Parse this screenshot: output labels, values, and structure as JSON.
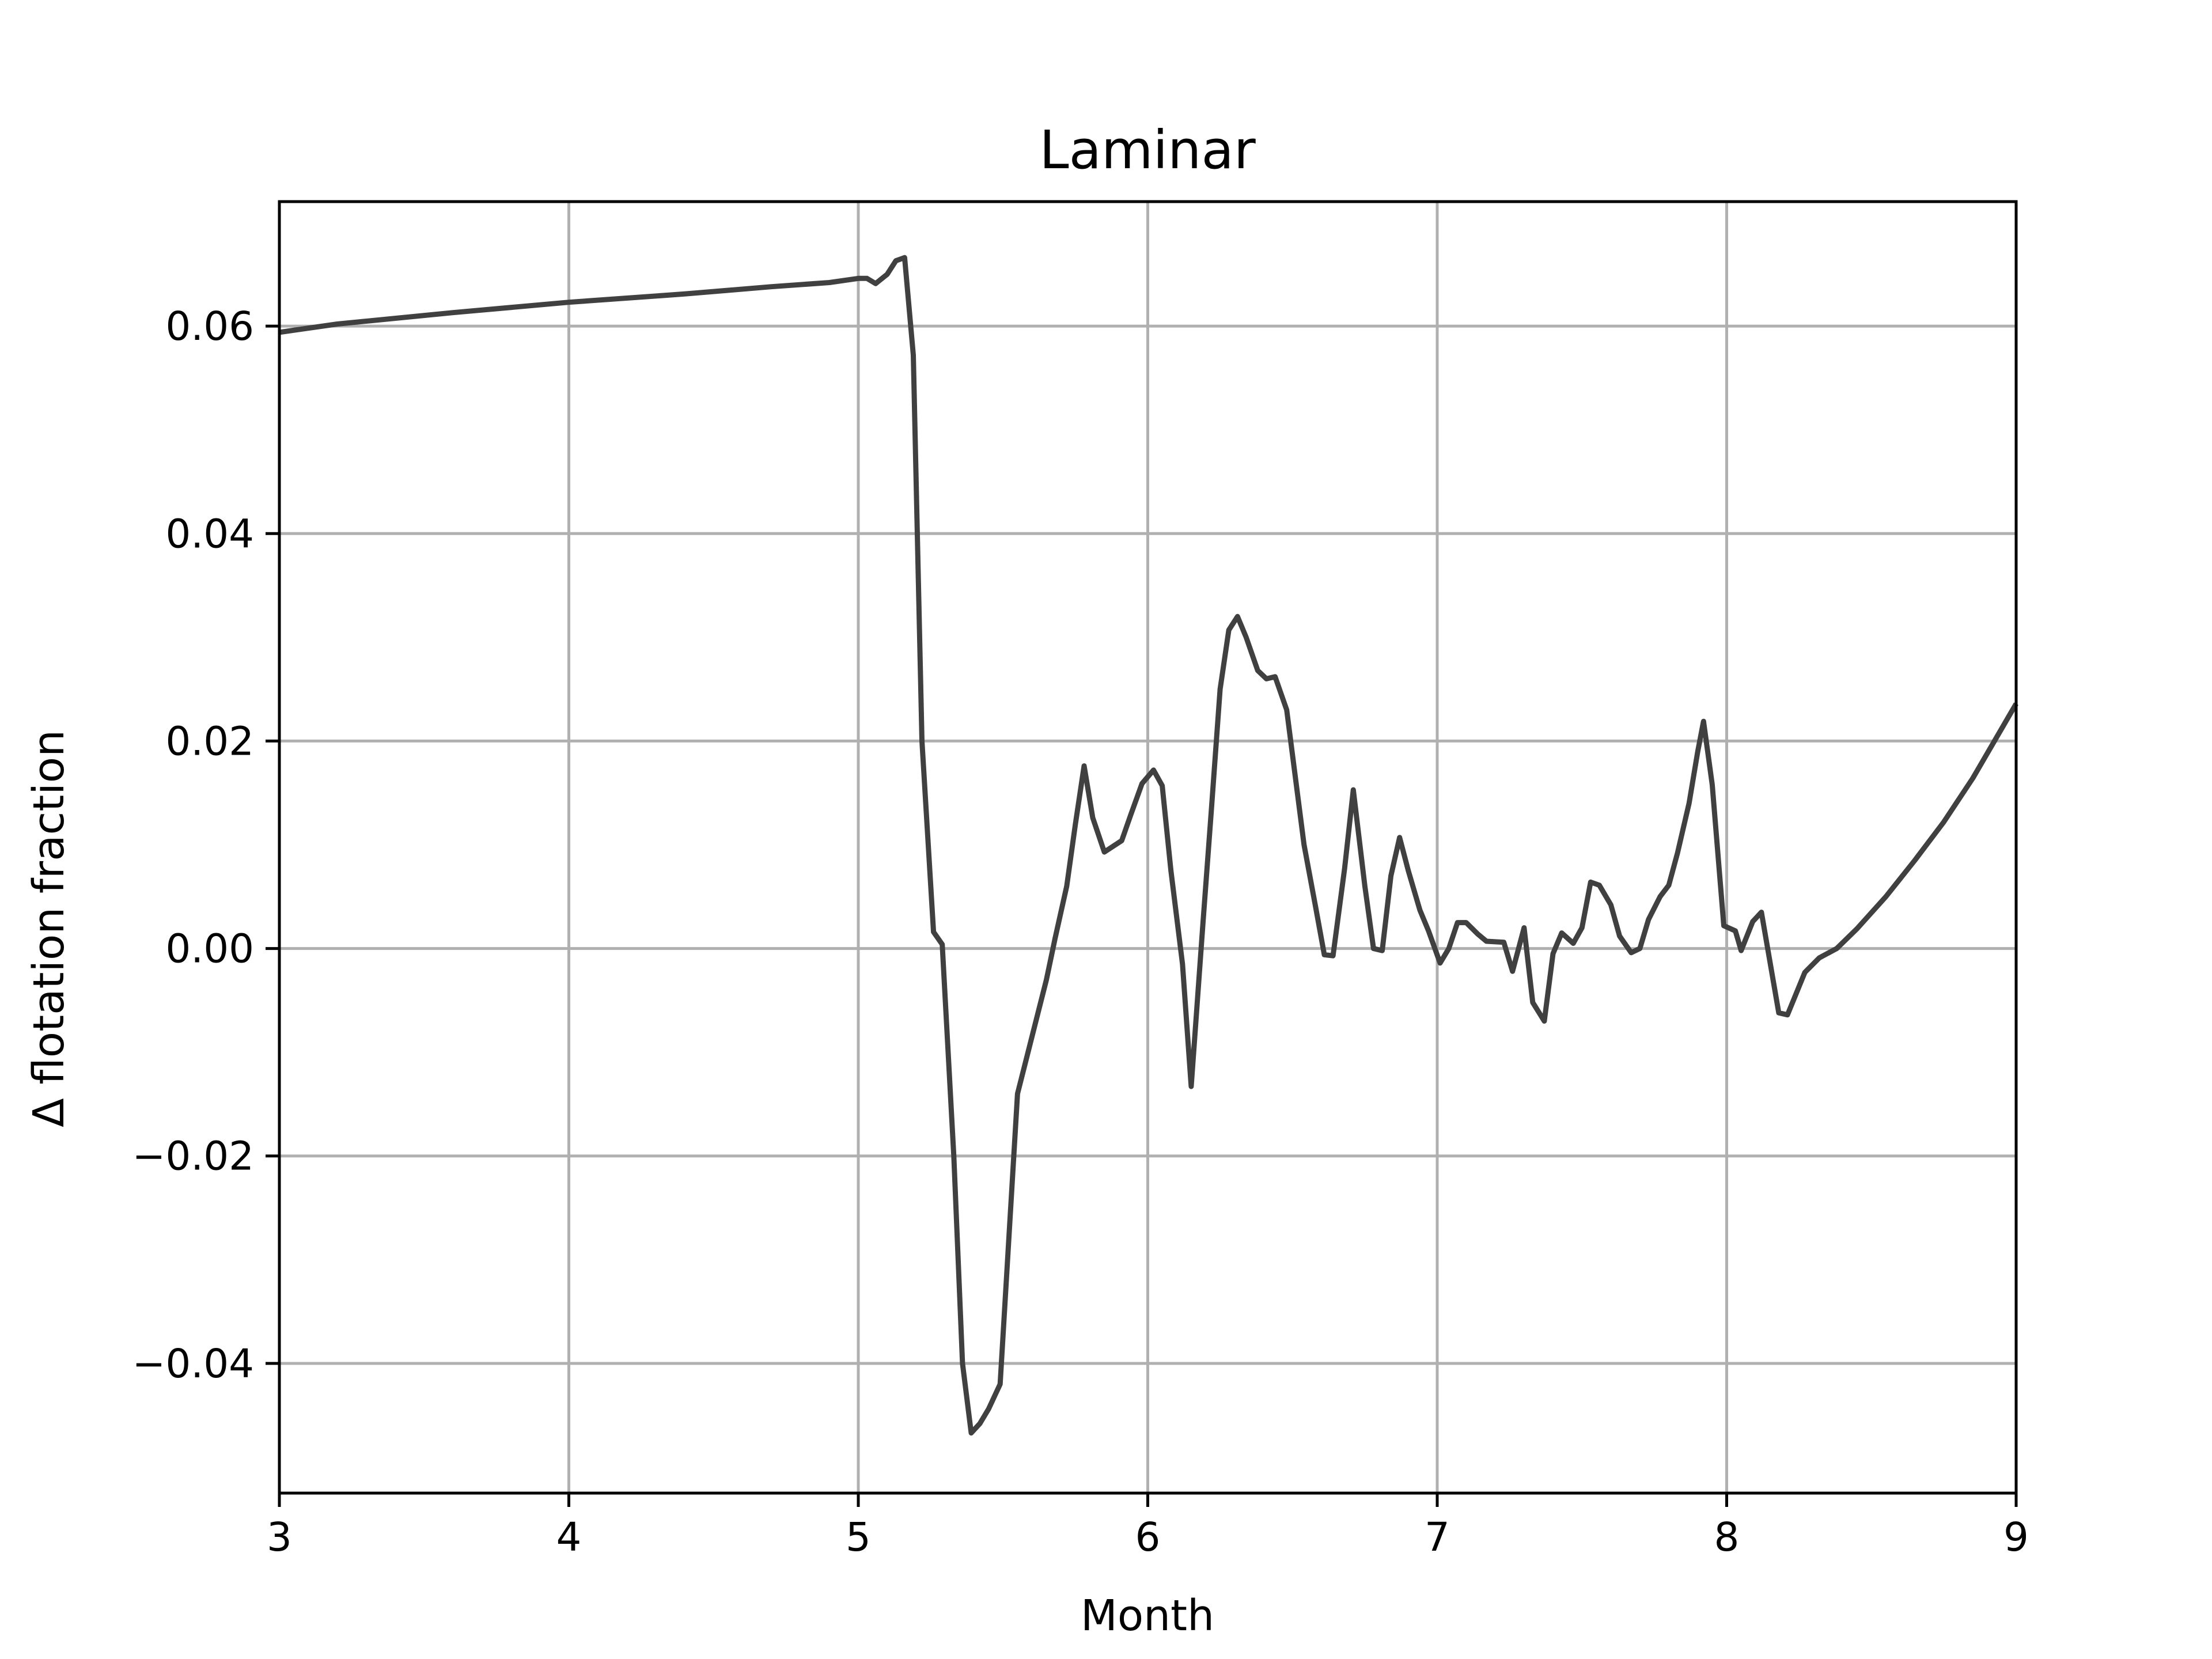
{
  "chart_data": {
    "type": "line",
    "title": "Laminar",
    "xlabel": "Month",
    "ylabel": "Δ flotation fraction",
    "xlim": [
      3,
      9
    ],
    "ylim": [
      -0.0525,
      0.072
    ],
    "xticks": [
      3,
      4,
      5,
      6,
      7,
      8,
      9
    ],
    "xtick_labels": [
      "3",
      "4",
      "5",
      "6",
      "7",
      "8",
      "9"
    ],
    "yticks": [
      -0.04,
      -0.02,
      0.0,
      0.02,
      0.04,
      0.06
    ],
    "ytick_labels": [
      "−0.04",
      "−0.02",
      "0.00",
      "0.02",
      "0.04",
      "0.06"
    ],
    "grid": true,
    "legend": "none",
    "series": [
      {
        "color": "#404040",
        "x": [
          3.0,
          3.2,
          3.6,
          4.0,
          4.4,
          4.7,
          4.9,
          5.0,
          5.03,
          5.06,
          5.1,
          5.13,
          5.16,
          5.19,
          5.22,
          5.26,
          5.29,
          5.33,
          5.36,
          5.39,
          5.42,
          5.45,
          5.49,
          5.55,
          5.6,
          5.65,
          5.68,
          5.72,
          5.75,
          5.78,
          5.81,
          5.85,
          5.91,
          5.94,
          5.98,
          6.02,
          6.05,
          6.08,
          6.12,
          6.15,
          6.19,
          6.22,
          6.25,
          6.28,
          6.31,
          6.34,
          6.38,
          6.41,
          6.44,
          6.48,
          6.54,
          6.58,
          6.61,
          6.64,
          6.68,
          6.71,
          6.75,
          6.78,
          6.81,
          6.84,
          6.87,
          6.9,
          6.94,
          6.97,
          7.01,
          7.04,
          7.07,
          7.1,
          7.14,
          7.17,
          7.23,
          7.26,
          7.3,
          7.33,
          7.37,
          7.4,
          7.43,
          7.47,
          7.5,
          7.53,
          7.56,
          7.6,
          7.63,
          7.67,
          7.7,
          7.73,
          7.77,
          7.8,
          7.83,
          7.87,
          7.9,
          7.92,
          7.95,
          7.99,
          8.03,
          8.05,
          8.09,
          8.12,
          8.18,
          8.21,
          8.27,
          8.32,
          8.38,
          8.45,
          8.55,
          8.65,
          8.75,
          8.85,
          8.95,
          9.0
        ],
        "y": [
          0.0594,
          0.0602,
          0.0613,
          0.0623,
          0.0631,
          0.0638,
          0.0642,
          0.0646,
          0.0646,
          0.0641,
          0.065,
          0.0663,
          0.0666,
          0.0572,
          0.02,
          0.0016,
          0.0004,
          -0.02,
          -0.04,
          -0.0467,
          -0.0458,
          -0.0444,
          -0.042,
          -0.014,
          -0.0085,
          -0.003,
          0.001,
          0.006,
          0.012,
          0.0176,
          0.0126,
          0.0093,
          0.0104,
          0.0128,
          0.0159,
          0.0172,
          0.0157,
          0.0075,
          -0.0015,
          -0.0133,
          0.0022,
          0.0135,
          0.025,
          0.0307,
          0.032,
          0.03,
          0.0268,
          0.026,
          0.0262,
          0.023,
          0.01,
          0.004,
          -0.0006,
          -0.0007,
          0.0077,
          0.0153,
          0.006,
          0.0,
          -0.0002,
          0.007,
          0.0107,
          0.0075,
          0.0037,
          0.0017,
          -0.0014,
          0.0,
          0.0025,
          0.0025,
          0.0014,
          0.0007,
          0.0006,
          -0.0022,
          0.002,
          -0.0052,
          -0.007,
          -0.0005,
          0.0015,
          0.0005,
          0.002,
          0.0064,
          0.0061,
          0.0042,
          0.0012,
          -0.0004,
          0.0,
          0.0028,
          0.005,
          0.0061,
          0.0092,
          0.014,
          0.019,
          0.0219,
          0.0158,
          0.0022,
          0.0017,
          -0.0002,
          0.0026,
          0.0035,
          -0.0062,
          -0.0064,
          -0.0023,
          -0.0009,
          0.0,
          0.0019,
          0.005,
          0.0085,
          0.0122,
          0.0164,
          0.0212,
          0.0236
        ]
      }
    ]
  }
}
